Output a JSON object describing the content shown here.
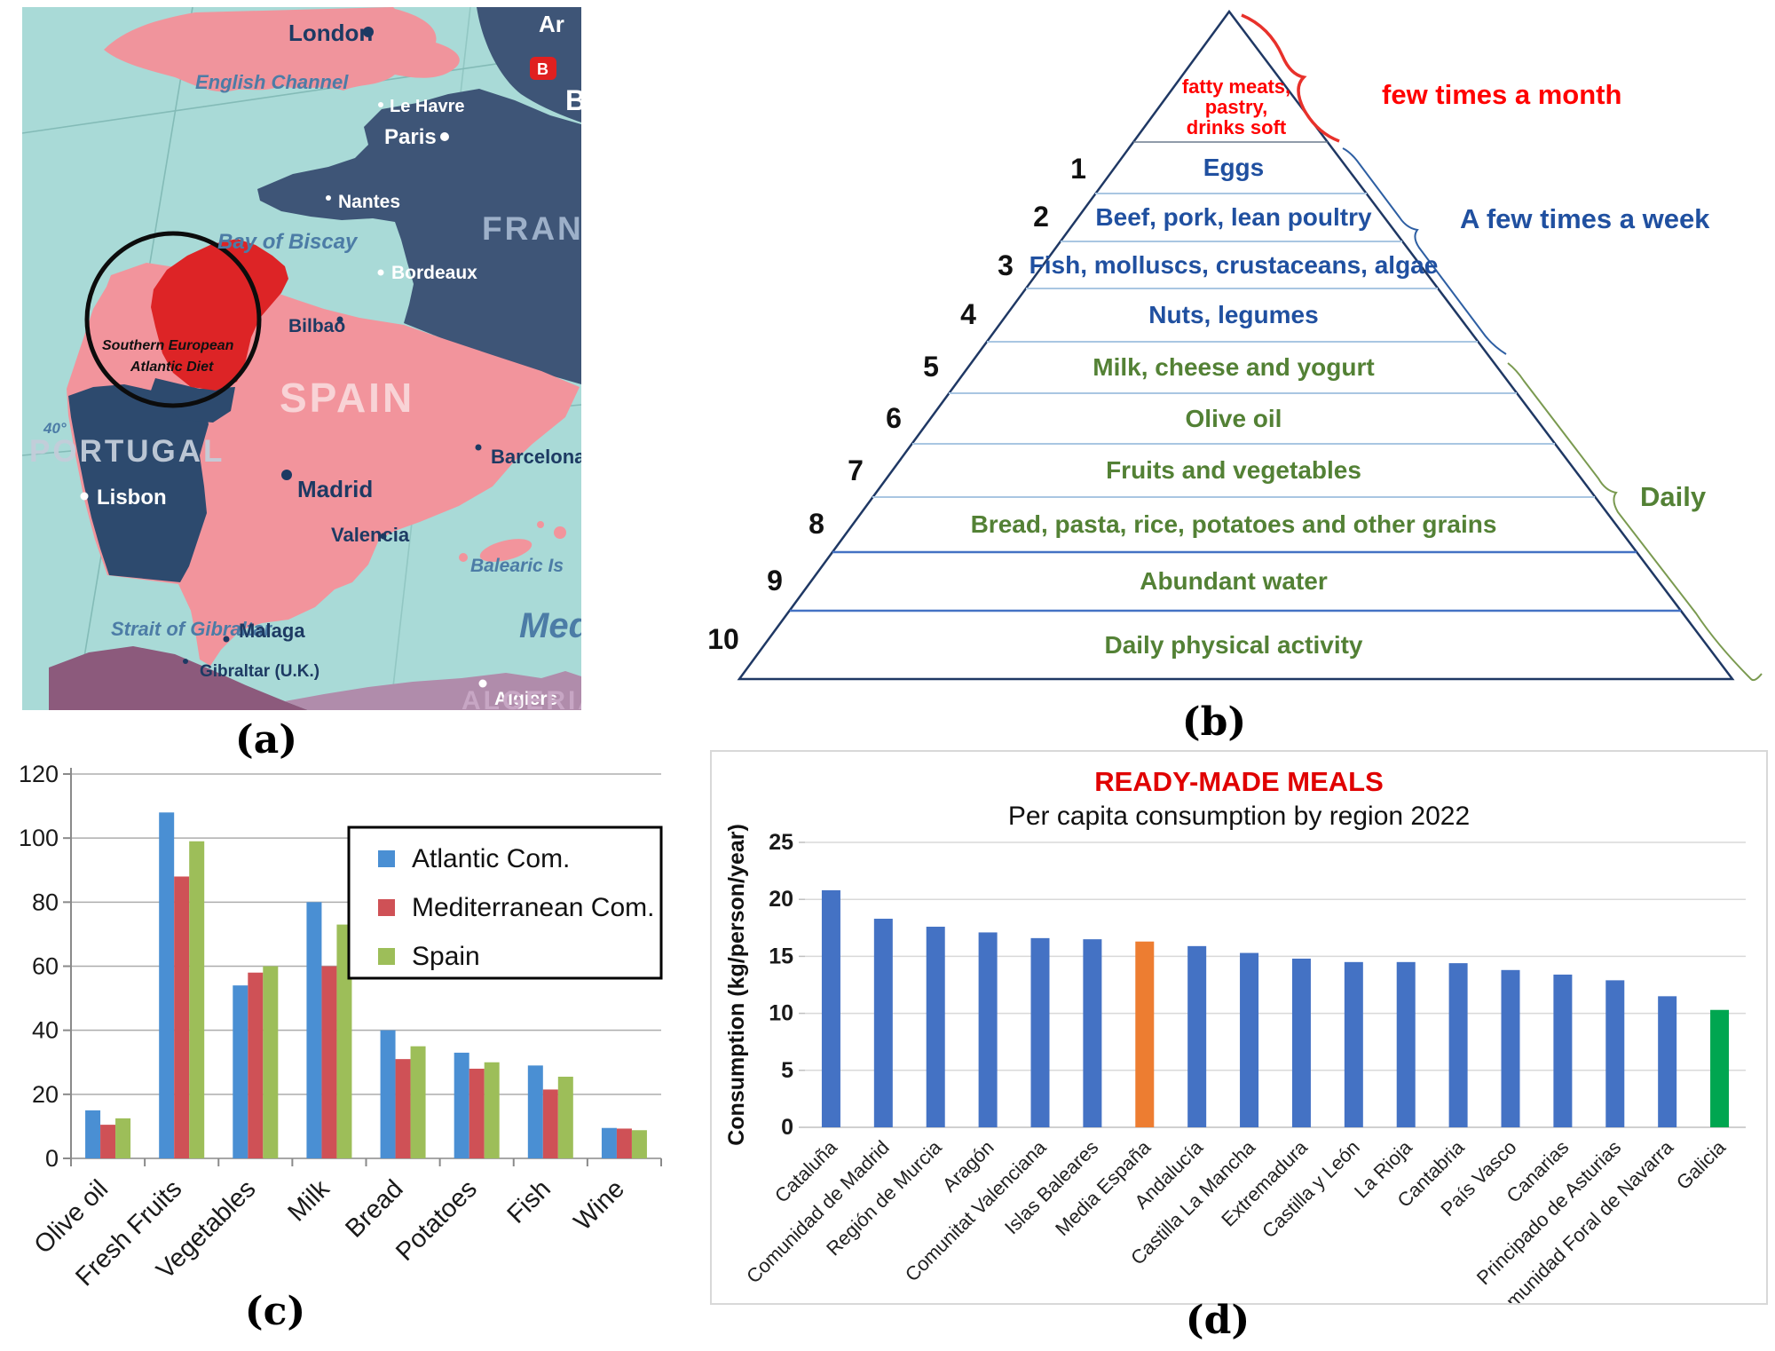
{
  "figure": {
    "panel_labels": {
      "a": "(a)",
      "b": "(b)",
      "c": "(c)",
      "d": "(d)"
    }
  },
  "map": {
    "highlight_label_line1": "Southern European",
    "highlight_label_line2": "Atlantic Diet",
    "labels": {
      "partial_top_right": "Ar",
      "brussels_badge": "B",
      "b_partial": "B",
      "london": "London",
      "english_channel": "English Channel",
      "le_havre": "Le Havre",
      "paris": "Paris",
      "nantes": "Nantes",
      "bay_of_biscay": "Bay of Biscay",
      "bordeaux": "Bordeaux",
      "france": "FRANCE",
      "bilbao": "Bilbao",
      "spain": "SPAIN",
      "madrid": "Madrid",
      "valencia": "Valencia",
      "barcelona": "Barcelona",
      "balearic_islands": "Balearic Is",
      "portugal": "PORTUGAL",
      "lisbon": "Lisbon",
      "latitude_40": "40°",
      "strait_of_gibraltar": "Strait of Gibraltar",
      "malaga": "Malaga",
      "gibraltar_uk": "Gibraltar (U.K.)",
      "mediterranean": "Med",
      "algiers": "Algiers",
      "algeria": "ALGERIA"
    },
    "colors": {
      "sea": "#a9dad7",
      "france_land": "#3e5577",
      "iberia_pink": "#f2949c",
      "portugal_land": "#2d4a6e",
      "highlight_red": "#dd2426",
      "morocco": "#8c5a7c",
      "algeria": "#b08cab"
    }
  },
  "pyramid": {
    "top_level": {
      "lines": [
        "fatty meats,",
        "pastry,",
        "drinks soft"
      ],
      "color": "#ff0000"
    },
    "levels": [
      {
        "number": "1",
        "label": "Eggs",
        "group": "weekly"
      },
      {
        "number": "2",
        "label": "Beef, pork, lean poultry",
        "group": "weekly"
      },
      {
        "number": "3",
        "label": "Fish, molluscs, crustaceans, algae",
        "group": "weekly"
      },
      {
        "number": "4",
        "label": "Nuts, legumes",
        "group": "weekly"
      },
      {
        "number": "5",
        "label": "Milk, cheese and yogurt",
        "group": "daily"
      },
      {
        "number": "6",
        "label": "Olive oil",
        "group": "daily"
      },
      {
        "number": "7",
        "label": "Fruits and vegetables",
        "group": "daily"
      },
      {
        "number": "8",
        "label": "Bread, pasta, rice, potatoes and other grains",
        "group": "daily"
      },
      {
        "number": "9",
        "label": "Abundant water",
        "group": "daily"
      },
      {
        "number": "10",
        "label": "Daily physical activity",
        "group": "daily"
      }
    ],
    "frequency_labels": {
      "monthly": {
        "text": "few times a month",
        "color": "#ff0000"
      },
      "weekly": {
        "text": "A few times a week",
        "color": "#2050a0"
      },
      "daily": {
        "text": "Daily",
        "color": "#538135"
      }
    }
  },
  "chart_data": [
    {
      "panel": "c",
      "type": "bar",
      "categories": [
        "Olive oil",
        "Fresh Fruits",
        "Vegetables",
        "Milk",
        "Bread",
        "Potatoes",
        "Fish",
        "Wine"
      ],
      "series": [
        {
          "name": "Atlantic Com.",
          "color": "#4a8fd3",
          "values": [
            15,
            108,
            54,
            80,
            40,
            33,
            29,
            9.5
          ]
        },
        {
          "name": "Mediterranean Com.",
          "color": "#cf5156",
          "values": [
            10.5,
            88,
            58,
            60,
            31,
            28,
            21.5,
            9.3
          ]
        },
        {
          "name": "Spain",
          "color": "#9dbe59",
          "values": [
            12.5,
            99,
            60,
            73,
            35,
            30,
            25.5,
            8.8
          ]
        }
      ],
      "ylim": [
        0,
        120
      ],
      "yticks": [
        0,
        20,
        40,
        60,
        80,
        100,
        120
      ],
      "grid": true,
      "legend_position": "upper right"
    },
    {
      "panel": "d",
      "type": "bar",
      "title": "READY-MADE MEALS",
      "title_color": "#e00000",
      "subtitle": "Per capita consumption by region 2022",
      "ylabel": "Consumption (kg/person/year)",
      "categories": [
        "Cataluña",
        "Comunidad de Madrid",
        "Región de Murcia",
        "Aragón",
        "Comunitat Valenciana",
        "Islas Baleares",
        "Media España",
        "Andalucía",
        "Castilla La Mancha",
        "Extremadura",
        "Castilla y León",
        "La Rioja",
        "Cantabria",
        "País Vasco",
        "Canarias",
        "Principado de Asturias",
        "Comunidad Foral de Navarra",
        "Galicia"
      ],
      "values": [
        20.8,
        18.3,
        17.6,
        17.1,
        16.6,
        16.5,
        16.3,
        15.9,
        15.3,
        14.8,
        14.5,
        14.5,
        14.4,
        13.8,
        13.4,
        12.9,
        11.5,
        10.3
      ],
      "bar_color_default": "#4472c4",
      "highlight_bars": [
        {
          "category": "Media España",
          "color": "#ed7d31"
        },
        {
          "category": "Galicia",
          "color": "#00a650"
        }
      ],
      "ylim": [
        0,
        25
      ],
      "yticks": [
        0,
        5,
        10,
        15,
        20,
        25
      ],
      "grid": true
    }
  ]
}
